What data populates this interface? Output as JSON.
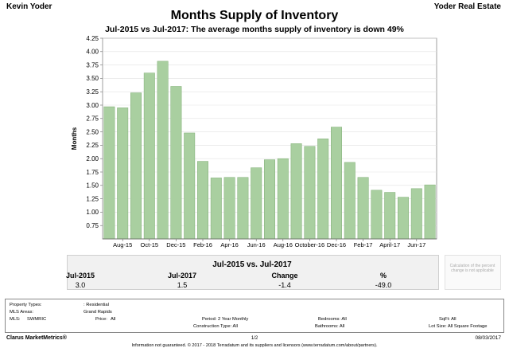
{
  "header": {
    "agent": "Kevin Yoder",
    "brokerage": "Yoder Real Estate"
  },
  "chart_data": {
    "type": "bar",
    "title": "Months Supply of Inventory",
    "subtitle": "Jul-2015 vs Jul-2017: The average months supply of inventory is down 49%",
    "ylabel": "Months",
    "xlabel": "",
    "ylim": [
      0.5,
      4.25
    ],
    "yticks": [
      "0.75",
      "1.00",
      "1.25",
      "1.50",
      "1.75",
      "2.00",
      "2.25",
      "2.50",
      "2.75",
      "3.00",
      "3.25",
      "3.50",
      "3.75",
      "4.00",
      "4.25"
    ],
    "categories": [
      "Jul-15",
      "Aug-15",
      "Sep-15",
      "Oct-15",
      "Nov-15",
      "Dec-15",
      "Jan-16",
      "Feb-16",
      "Mar-16",
      "Apr-16",
      "May-16",
      "Jun-16",
      "Jul-16",
      "Aug-16",
      "Sep-16",
      "Oct-16",
      "Nov-16",
      "Dec-16",
      "Jan-17",
      "Feb-17",
      "Mar-17",
      "Apr-17",
      "May-17",
      "Jun-17",
      "Jul-17"
    ],
    "xtick_labels": [
      {
        "index": 1,
        "label": "Aug-15"
      },
      {
        "index": 3,
        "label": "Oct-15"
      },
      {
        "index": 5,
        "label": "Dec-15"
      },
      {
        "index": 7,
        "label": "Feb-16"
      },
      {
        "index": 9,
        "label": "Apr-16"
      },
      {
        "index": 11,
        "label": "Jun-16"
      },
      {
        "index": 13,
        "label": "Aug-16"
      },
      {
        "index": 15,
        "label": "October-16"
      },
      {
        "index": 17,
        "label": "Dec-16"
      },
      {
        "index": 19,
        "label": "Feb-17"
      },
      {
        "index": 21,
        "label": "April-17"
      },
      {
        "index": 23,
        "label": "Jun-17"
      }
    ],
    "values": [
      2.97,
      2.95,
      3.23,
      3.6,
      3.82,
      3.35,
      2.48,
      1.95,
      1.64,
      1.65,
      1.65,
      1.83,
      1.98,
      2.0,
      2.28,
      2.23,
      2.37,
      2.59,
      1.93,
      1.65,
      1.41,
      1.37,
      1.28,
      1.44,
      1.51
    ],
    "bar_color": "#a9cfa0",
    "bar_edge_color": "#7fae74",
    "plot_background": "#ffffff"
  },
  "summary": {
    "title": "Jul-2015 vs. Jul-2017",
    "headers": [
      "Jul-2015",
      "Jul-2017",
      "Change",
      "%"
    ],
    "values": [
      "3.0",
      "1.5",
      "-1.4",
      "-49.0"
    ],
    "note": "Calculation of the percent change is not applicable"
  },
  "criteria": {
    "property_types_label": "Property Types:",
    "property_types_value": ": Residential",
    "mls_areas_label": "MLS Areas:",
    "mls_areas_value": "Grand Rapids",
    "mls_label": "MLS:",
    "mls_value": "SWMRIC",
    "price_label": "Price:",
    "price_value": "All",
    "period": "Period: 2 Year Monthly",
    "construction": "Construction Type: All",
    "bedrooms": "Bedrooms: All",
    "bathrooms": "Bathrooms: All",
    "sqft": "SqFt: All",
    "lot_size": "Lot Size: All Square Footage"
  },
  "footer": {
    "left": "Clarus MarketMetrics®",
    "page": "1/2",
    "date": "08/03/2017",
    "disclaimer": "Information not guaranteed. © 2017 - 2018 Terradatum and its suppliers and licensors (www.terradatum.com/about/partners)."
  }
}
